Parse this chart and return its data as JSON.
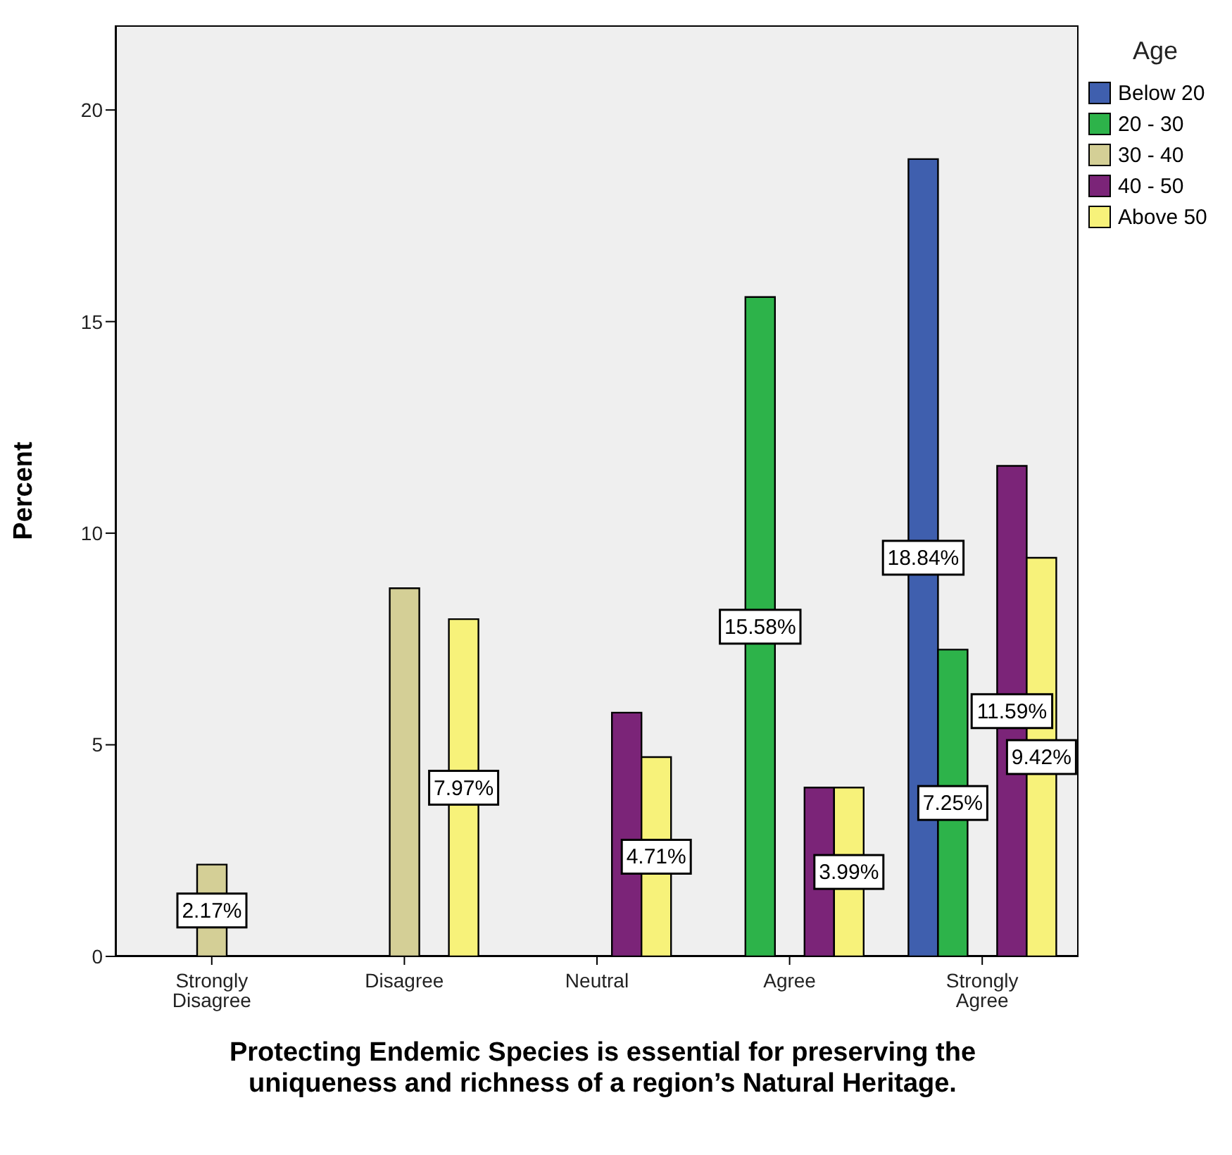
{
  "chart_data": {
    "type": "bar",
    "xlabel": "Protecting Endemic Species is essential for preserving the uniqueness and richness of a region’s Natural Heritage.",
    "ylabel": "Percent",
    "legend_title": "Age",
    "categories": [
      "Strongly Disagree",
      "Disagree",
      "Neutral",
      "Agree",
      "Strongly Agree"
    ],
    "series": [
      {
        "name": "Below 20",
        "color": "#3f5fae",
        "values": [
          null,
          null,
          null,
          null,
          18.84
        ],
        "value_labels": [
          null,
          null,
          null,
          null,
          "18.84%"
        ]
      },
      {
        "name": "20 - 30",
        "color": "#2db34a",
        "values": [
          null,
          null,
          null,
          15.58,
          7.25
        ],
        "value_labels": [
          null,
          null,
          null,
          "15.58%",
          "7.25%"
        ]
      },
      {
        "name": "30 - 40",
        "color": "#d4cf96",
        "values": [
          2.17,
          8.7,
          null,
          null,
          null
        ],
        "value_labels": [
          "2.17%",
          null,
          null,
          null,
          null
        ]
      },
      {
        "name": "40 - 50",
        "color": "#7b2478",
        "values": [
          null,
          null,
          5.76,
          3.99,
          11.59
        ],
        "value_labels": [
          null,
          null,
          null,
          null,
          "11.59%"
        ]
      },
      {
        "name": "Above 50",
        "color": "#f7f27a",
        "values": [
          null,
          7.97,
          4.71,
          3.99,
          9.42
        ],
        "value_labels": [
          null,
          "7.97%",
          "4.71%",
          "3.99%",
          "9.42%"
        ]
      }
    ],
    "ylim": [
      0,
      22
    ],
    "yticks": [
      0,
      5,
      10,
      15,
      20
    ],
    "grid": false,
    "legend": "top right"
  }
}
